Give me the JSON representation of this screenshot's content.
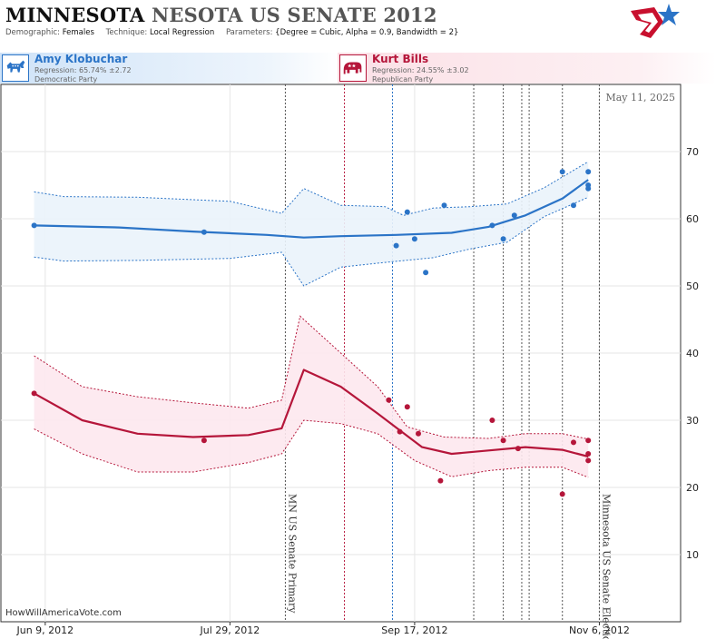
{
  "header": {
    "title_a": "MINNESOTA",
    "title_b": "NESOTA US SENATE 2012",
    "demographic_key": "Demographic:",
    "demographic_val": "Females",
    "technique_key": "Technique:",
    "technique_val": "Local Regression",
    "parameters_key": "Parameters:",
    "parameters_val": "{Degree = Cubic, Alpha = 0.9, Bandwidth = 2}"
  },
  "candidates": [
    {
      "name": "Amy Klobuchar",
      "regression": "Regression: 65.74% ±2.72",
      "party": "Democratic Party",
      "icon": "donkey-icon",
      "color": "#2b74c7"
    },
    {
      "name": "Kurt Bills",
      "regression": "Regression: 24.55% ±3.02",
      "party": "Republican Party",
      "icon": "elephant-icon",
      "color": "#b5163a"
    }
  ],
  "chart_data": {
    "type": "scatter",
    "date_stamp": "May 11, 2025",
    "source": "HowWillAmericaVote.com",
    "x_ticks": [
      "Jun 9, 2012",
      "Jul 29, 2012",
      "Sep 17, 2012",
      "Nov 6, 2012"
    ],
    "y_ticks": [
      10,
      20,
      30,
      40,
      50,
      60,
      70
    ],
    "ylim": [
      0,
      80
    ],
    "x_range_days": [
      -12,
      172
    ],
    "tick_days": [
      0,
      50,
      100,
      150
    ],
    "events": [
      {
        "label": "MN US Senate Primary",
        "day": 65
      },
      {
        "label": "Minnesota US Senate Election",
        "day": 150
      }
    ],
    "event_lines": [
      {
        "day": 65,
        "color": "#555555"
      },
      {
        "day": 81,
        "color": "#b5163a"
      },
      {
        "day": 94,
        "color": "#2b74c7"
      },
      {
        "day": 116,
        "color": "#555555"
      },
      {
        "day": 124,
        "color": "#555555"
      },
      {
        "day": 129,
        "color": "#555555"
      },
      {
        "day": 131,
        "color": "#555555"
      },
      {
        "day": 140,
        "color": "#555555"
      },
      {
        "day": 150,
        "color": "#555555"
      }
    ],
    "series": [
      {
        "name": "Amy Klobuchar",
        "color": "#2b74c7",
        "points": [
          [
            -3,
            59
          ],
          [
            43,
            58
          ],
          [
            95,
            56
          ],
          [
            98,
            61
          ],
          [
            100,
            57
          ],
          [
            103,
            52
          ],
          [
            108,
            62
          ],
          [
            121,
            59
          ],
          [
            124,
            57
          ],
          [
            127,
            60.5
          ],
          [
            140,
            67
          ],
          [
            143,
            62
          ],
          [
            147,
            67
          ],
          [
            147,
            65
          ],
          [
            147,
            64.5
          ]
        ],
        "trend": [
          [
            -3,
            59
          ],
          [
            20,
            58.7
          ],
          [
            40,
            58.1
          ],
          [
            60,
            57.6
          ],
          [
            70,
            57.2
          ],
          [
            80,
            57.4
          ],
          [
            95,
            57.6
          ],
          [
            110,
            57.9
          ],
          [
            120,
            58.8
          ],
          [
            130,
            60.5
          ],
          [
            140,
            63
          ],
          [
            147,
            65.8
          ]
        ],
        "upper": [
          [
            -3,
            64
          ],
          [
            5,
            63.3
          ],
          [
            25,
            63.2
          ],
          [
            50,
            62.6
          ],
          [
            64,
            60.8
          ],
          [
            70,
            64.5
          ],
          [
            80,
            62
          ],
          [
            92,
            61.8
          ],
          [
            97,
            60.5
          ],
          [
            105,
            61.6
          ],
          [
            115,
            61.8
          ],
          [
            125,
            62.2
          ],
          [
            135,
            64.6
          ],
          [
            147,
            68.5
          ]
        ],
        "lower": [
          [
            -3,
            54.3
          ],
          [
            5,
            53.7
          ],
          [
            25,
            53.8
          ],
          [
            50,
            54.1
          ],
          [
            64,
            55
          ],
          [
            70,
            50
          ],
          [
            80,
            52.8
          ],
          [
            92,
            53.5
          ],
          [
            105,
            54.2
          ],
          [
            115,
            55.5
          ],
          [
            125,
            56.5
          ],
          [
            135,
            60.3
          ],
          [
            147,
            63.2
          ]
        ]
      },
      {
        "name": "Kurt Bills",
        "color": "#b5163a",
        "points": [
          [
            -3,
            34
          ],
          [
            43,
            27
          ],
          [
            93,
            33
          ],
          [
            96,
            28.3
          ],
          [
            98,
            32
          ],
          [
            101,
            28
          ],
          [
            107,
            21
          ],
          [
            121,
            30
          ],
          [
            124,
            27
          ],
          [
            128,
            25.8
          ],
          [
            140,
            19
          ],
          [
            143,
            26.7
          ],
          [
            147,
            27
          ],
          [
            147,
            25
          ],
          [
            147,
            24
          ]
        ],
        "trend": [
          [
            -3,
            34
          ],
          [
            10,
            30
          ],
          [
            25,
            28
          ],
          [
            40,
            27.5
          ],
          [
            55,
            27.8
          ],
          [
            64,
            28.8
          ],
          [
            70,
            37.5
          ],
          [
            80,
            35
          ],
          [
            90,
            31
          ],
          [
            96,
            28.5
          ],
          [
            102,
            26
          ],
          [
            110,
            25
          ],
          [
            120,
            25.5
          ],
          [
            130,
            26
          ],
          [
            140,
            25.6
          ],
          [
            147,
            24.6
          ]
        ],
        "upper": [
          [
            -3,
            39.6
          ],
          [
            10,
            35
          ],
          [
            25,
            33.5
          ],
          [
            40,
            32.6
          ],
          [
            55,
            31.8
          ],
          [
            64,
            33
          ],
          [
            69,
            45.5
          ],
          [
            80,
            40
          ],
          [
            90,
            35
          ],
          [
            98,
            29
          ],
          [
            108,
            27.5
          ],
          [
            120,
            27.3
          ],
          [
            130,
            28
          ],
          [
            140,
            28
          ],
          [
            147,
            27.2
          ]
        ],
        "lower": [
          [
            -3,
            28.7
          ],
          [
            10,
            25
          ],
          [
            25,
            22.3
          ],
          [
            40,
            22.3
          ],
          [
            55,
            23.7
          ],
          [
            64,
            25
          ],
          [
            70,
            30
          ],
          [
            80,
            29.5
          ],
          [
            90,
            28
          ],
          [
            100,
            24
          ],
          [
            110,
            21.6
          ],
          [
            120,
            22.5
          ],
          [
            130,
            23
          ],
          [
            140,
            23
          ],
          [
            147,
            21.5
          ]
        ]
      }
    ]
  }
}
